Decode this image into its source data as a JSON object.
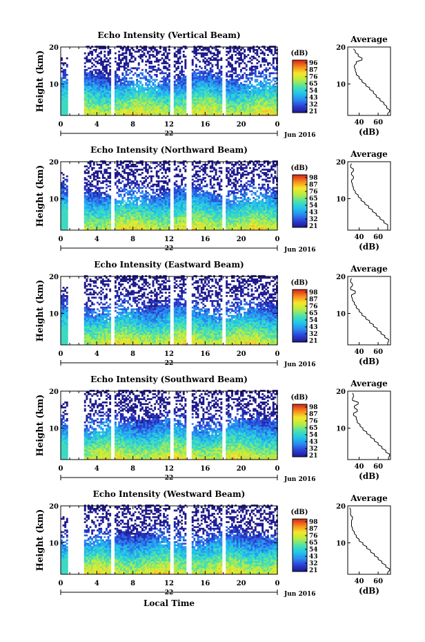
{
  "figure": {
    "x_label": "Local Time",
    "date_label": "Jun 2016",
    "day_label": "22",
    "colorbar_unit": "(dB)",
    "average_title": "Average",
    "average_xlabel": "(dB)",
    "height_label": "Height (km)"
  },
  "chart_data": [
    {
      "type": "heatmap",
      "title": "Echo Intensity (Vertical Beam)",
      "ylabel": "Height (km)",
      "x_ticks": [
        "0",
        "4",
        "8",
        "12",
        "16",
        "20",
        "0"
      ],
      "y_ticks": [
        "20",
        "10"
      ],
      "xlim": [
        0,
        24
      ],
      "ylim": [
        1.5,
        20
      ],
      "colorbar_ticks": [
        "96",
        "87",
        "76",
        "65",
        "54",
        "43",
        "32",
        "21"
      ],
      "day": "22",
      "date": "Jun 2016",
      "data_gaps_hours": [
        [
          0.6,
          2.4
        ],
        [
          5.5,
          5.9
        ],
        [
          12.0,
          12.4
        ],
        [
          13.9,
          14.5
        ],
        [
          17.8,
          18.1
        ]
      ],
      "average_profile": {
        "title": "Average",
        "xlabel": "(dB)",
        "x_ticks": [
          "40",
          "60"
        ],
        "xlim": [
          28,
          73
        ],
        "height_km": [
          1.5,
          2.5,
          3.5,
          4.5,
          5.5,
          6.5,
          7.5,
          8.5,
          9.5,
          10.5,
          11.5,
          12.5,
          13.5,
          14.5,
          15.5,
          16.5,
          17.5,
          18.5,
          19.5
        ],
        "db": [
          70,
          72,
          69,
          66,
          62,
          58,
          55,
          51,
          47,
          43,
          40,
          37,
          36,
          35,
          37,
          43,
          39,
          36,
          34
        ]
      }
    },
    {
      "type": "heatmap",
      "title": "Echo Intensity (Northward Beam)",
      "ylabel": "Height (km)",
      "x_ticks": [
        "0",
        "4",
        "8",
        "12",
        "16",
        "20",
        "0"
      ],
      "y_ticks": [
        "20",
        "10"
      ],
      "xlim": [
        0,
        24
      ],
      "ylim": [
        1.5,
        20
      ],
      "colorbar_ticks": [
        "98",
        "87",
        "76",
        "65",
        "54",
        "43",
        "32",
        "21"
      ],
      "day": "22",
      "date": "Jun 2016",
      "data_gaps_hours": [
        [
          0.6,
          2.4
        ],
        [
          5.5,
          5.9
        ],
        [
          12.0,
          12.4
        ],
        [
          13.9,
          14.5
        ],
        [
          17.8,
          18.1
        ]
      ],
      "average_profile": {
        "title": "Average",
        "xlabel": "(dB)",
        "x_ticks": [
          "40",
          "60"
        ],
        "xlim": [
          28,
          73
        ],
        "height_km": [
          1.5,
          2.5,
          3.5,
          4.5,
          5.5,
          6.5,
          7.5,
          8.5,
          9.5,
          10.5,
          11.5,
          12.5,
          13.5,
          14.5,
          15.5,
          16.5,
          17.5,
          18.5,
          19.5
        ],
        "db": [
          70,
          70,
          66,
          62,
          58,
          54,
          50,
          46,
          42,
          39,
          36,
          34,
          33,
          32,
          34,
          32,
          34,
          31,
          32
        ]
      }
    },
    {
      "type": "heatmap",
      "title": "Echo Intensity (Eastward Beam)",
      "ylabel": "Height (km)",
      "x_ticks": [
        "0",
        "4",
        "8",
        "12",
        "16",
        "20",
        "0"
      ],
      "y_ticks": [
        "20",
        "10"
      ],
      "xlim": [
        0,
        24
      ],
      "ylim": [
        1.5,
        20
      ],
      "colorbar_ticks": [
        "98",
        "87",
        "76",
        "65",
        "54",
        "43",
        "32",
        "21"
      ],
      "day": "22",
      "date": "Jun 2016",
      "data_gaps_hours": [
        [
          0.6,
          2.4
        ],
        [
          5.5,
          5.9
        ],
        [
          12.0,
          12.4
        ],
        [
          13.9,
          14.5
        ],
        [
          17.8,
          18.1
        ]
      ],
      "average_profile": {
        "title": "Average",
        "xlabel": "(dB)",
        "x_ticks": [
          "40",
          "60"
        ],
        "xlim": [
          28,
          73
        ],
        "height_km": [
          1.5,
          2.5,
          3.5,
          4.5,
          5.5,
          6.5,
          7.5,
          8.5,
          9.5,
          10.5,
          11.5,
          12.5,
          13.5,
          14.5,
          15.5,
          16.5,
          17.5,
          18.5,
          19.5
        ],
        "db": [
          70,
          71,
          67,
          63,
          59,
          55,
          51,
          47,
          43,
          40,
          37,
          35,
          33,
          32,
          36,
          31,
          33,
          31,
          32
        ]
      }
    },
    {
      "type": "heatmap",
      "title": "Echo Intensity (Southward Beam)",
      "ylabel": "Height (km)",
      "x_ticks": [
        "0",
        "4",
        "8",
        "12",
        "16",
        "20",
        "0"
      ],
      "y_ticks": [
        "20",
        "10"
      ],
      "xlim": [
        0,
        24
      ],
      "ylim": [
        1.5,
        20
      ],
      "colorbar_ticks": [
        "98",
        "87",
        "76",
        "65",
        "54",
        "43",
        "32",
        "21"
      ],
      "day": "22",
      "date": "Jun 2016",
      "data_gaps_hours": [
        [
          0.6,
          2.4
        ],
        [
          5.5,
          5.9
        ],
        [
          12.0,
          12.4
        ],
        [
          13.9,
          14.5
        ],
        [
          17.8,
          18.1
        ]
      ],
      "average_profile": {
        "title": "Average",
        "xlabel": "(dB)",
        "x_ticks": [
          "40",
          "60"
        ],
        "xlim": [
          28,
          73
        ],
        "height_km": [
          1.5,
          2.5,
          3.5,
          4.5,
          5.5,
          6.5,
          7.5,
          8.5,
          9.5,
          10.5,
          11.5,
          12.5,
          13.5,
          14.5,
          15.5,
          16.5,
          17.5,
          18.5,
          19.5
        ],
        "db": [
          71,
          72,
          68,
          64,
          60,
          56,
          52,
          48,
          44,
          41,
          38,
          37,
          34,
          38,
          35,
          39,
          33,
          34,
          33
        ]
      }
    },
    {
      "type": "heatmap",
      "title": "Echo Intensity (Westward Beam)",
      "ylabel": "Height (km)",
      "x_ticks": [
        "0",
        "4",
        "8",
        "12",
        "16",
        "20",
        "0"
      ],
      "y_ticks": [
        "20",
        "10"
      ],
      "xlim": [
        0,
        24
      ],
      "ylim": [
        1.5,
        20
      ],
      "colorbar_ticks": [
        "98",
        "87",
        "76",
        "65",
        "54",
        "43",
        "32",
        "21"
      ],
      "day": "22",
      "date": "Jun 2016",
      "data_gaps_hours": [
        [
          0.6,
          2.4
        ],
        [
          5.5,
          5.9
        ],
        [
          12.0,
          12.4
        ],
        [
          13.9,
          14.5
        ],
        [
          17.8,
          18.1
        ]
      ],
      "average_profile": {
        "title": "Average",
        "xlabel": "(dB)",
        "x_ticks": [
          "40",
          "60"
        ],
        "xlim": [
          28,
          73
        ],
        "height_km": [
          1.5,
          2.5,
          3.5,
          4.5,
          5.5,
          6.5,
          7.5,
          8.5,
          9.5,
          10.5,
          11.5,
          12.5,
          13.5,
          14.5,
          15.5,
          16.5,
          17.5,
          18.5,
          19.5
        ],
        "db": [
          70,
          72,
          68,
          64,
          60,
          56,
          52,
          48,
          44,
          40,
          37,
          35,
          33,
          32,
          32,
          33,
          31,
          31,
          30
        ]
      }
    }
  ]
}
